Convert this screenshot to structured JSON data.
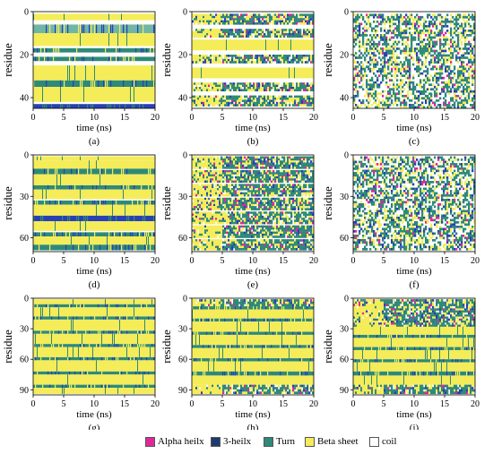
{
  "chart_data": [
    {
      "id": "a",
      "type": "heatmap",
      "tag": "(a)",
      "xlabel": "time (ns)",
      "ylabel": "residue",
      "xlim": [
        0,
        20
      ],
      "ylim": [
        0,
        45
      ],
      "xticks": [
        0,
        5,
        10,
        15,
        20
      ],
      "yticks": [
        0,
        20,
        40
      ],
      "bands": [
        [
          1,
          4,
          "beta"
        ],
        [
          6,
          10,
          "turn_light"
        ],
        [
          10,
          16,
          "beta"
        ],
        [
          17,
          19,
          "turn"
        ],
        [
          21,
          23,
          "turn"
        ],
        [
          25,
          32,
          "beta"
        ],
        [
          32,
          35,
          "turn"
        ],
        [
          35,
          42,
          "beta"
        ],
        [
          43,
          45,
          "helix3"
        ]
      ]
    },
    {
      "id": "b",
      "type": "heatmap",
      "tag": "(b)",
      "xlabel": "time (ns)",
      "ylabel": "residue",
      "xlim": [
        0,
        20
      ],
      "ylim": [
        0,
        45
      ],
      "xticks": [
        0,
        5,
        10,
        15,
        20
      ],
      "yticks": [
        0,
        20,
        40
      ],
      "bands": [
        [
          1,
          6,
          "mixed"
        ],
        [
          8,
          12,
          "mixed"
        ],
        [
          13,
          18,
          "beta"
        ],
        [
          20,
          24,
          "mixed"
        ],
        [
          26,
          31,
          "beta"
        ],
        [
          33,
          37,
          "mixed"
        ],
        [
          39,
          44,
          "mixed"
        ]
      ]
    },
    {
      "id": "c",
      "type": "heatmap",
      "tag": "(c)",
      "xlabel": "time (ns)",
      "ylabel": "residue",
      "xlim": [
        0,
        20
      ],
      "ylim": [
        0,
        45
      ],
      "xticks": [
        0,
        5,
        10,
        15,
        20
      ],
      "yticks": [
        0,
        20,
        40
      ],
      "bands": [
        [
          1,
          45,
          "disordered"
        ]
      ]
    },
    {
      "id": "d",
      "type": "heatmap",
      "tag": "(d)",
      "xlabel": "time (ns)",
      "ylabel": "residue",
      "xlim": [
        0,
        20
      ],
      "ylim": [
        0,
        70
      ],
      "xticks": [
        0,
        5,
        10,
        15,
        20
      ],
      "yticks": [
        0,
        30,
        60
      ],
      "bands": [
        [
          1,
          4,
          "beta"
        ],
        [
          4,
          10,
          "beta"
        ],
        [
          10,
          14,
          "turn"
        ],
        [
          14,
          22,
          "beta"
        ],
        [
          22,
          25,
          "turn"
        ],
        [
          25,
          32,
          "beta"
        ],
        [
          33,
          36,
          "turn"
        ],
        [
          36,
          44,
          "beta"
        ],
        [
          44,
          48,
          "helix3"
        ],
        [
          48,
          55,
          "beta"
        ],
        [
          56,
          59,
          "turn"
        ],
        [
          59,
          65,
          "beta"
        ],
        [
          65,
          69,
          "turn"
        ]
      ]
    },
    {
      "id": "e",
      "type": "heatmap",
      "tag": "(e)",
      "xlabel": "time (ns)",
      "ylabel": "residue",
      "xlim": [
        0,
        20
      ],
      "ylim": [
        0,
        70
      ],
      "xticks": [
        0,
        5,
        10,
        15,
        20
      ],
      "yticks": [
        0,
        30,
        60
      ],
      "bands": [
        [
          1,
          10,
          "mixed"
        ],
        [
          11,
          20,
          "mixed"
        ],
        [
          21,
          30,
          "mixed"
        ],
        [
          31,
          40,
          "mixed"
        ],
        [
          41,
          50,
          "mixed"
        ],
        [
          51,
          60,
          "mixed"
        ],
        [
          61,
          69,
          "mixed"
        ]
      ]
    },
    {
      "id": "f",
      "type": "heatmap",
      "tag": "(f)",
      "xlabel": "time (ns)",
      "ylabel": "residue",
      "xlim": [
        0,
        20
      ],
      "ylim": [
        0,
        70
      ],
      "xticks": [
        0,
        5,
        10,
        15,
        20
      ],
      "yticks": [
        0,
        30,
        60
      ],
      "bands": [
        [
          1,
          69,
          "disordered"
        ]
      ]
    },
    {
      "id": "g",
      "type": "heatmap",
      "tag": "(g)",
      "xlabel": "time (ns)",
      "ylabel": "residue",
      "xlim": [
        0,
        20
      ],
      "ylim": [
        0,
        95
      ],
      "xticks": [
        0,
        5,
        10,
        15,
        20
      ],
      "yticks": [
        0,
        30,
        60,
        90
      ],
      "bands": [
        [
          1,
          6,
          "beta"
        ],
        [
          6,
          9,
          "turn"
        ],
        [
          9,
          18,
          "beta"
        ],
        [
          18,
          21,
          "turn"
        ],
        [
          21,
          32,
          "beta"
        ],
        [
          32,
          35,
          "turn"
        ],
        [
          35,
          45,
          "beta"
        ],
        [
          45,
          48,
          "turn"
        ],
        [
          48,
          58,
          "beta"
        ],
        [
          58,
          61,
          "turn"
        ],
        [
          61,
          72,
          "beta"
        ],
        [
          72,
          75,
          "turn"
        ],
        [
          75,
          85,
          "beta"
        ],
        [
          85,
          88,
          "turn"
        ],
        [
          88,
          94,
          "beta"
        ]
      ]
    },
    {
      "id": "h",
      "type": "heatmap",
      "tag": "(h)",
      "xlabel": "time (ns)",
      "ylabel": "residue",
      "xlim": [
        0,
        20
      ],
      "ylim": [
        0,
        95
      ],
      "xticks": [
        0,
        5,
        10,
        15,
        20
      ],
      "yticks": [
        0,
        30,
        60,
        90
      ],
      "bands": [
        [
          1,
          8,
          "mixed"
        ],
        [
          8,
          11,
          "turn"
        ],
        [
          11,
          20,
          "beta"
        ],
        [
          20,
          23,
          "turn"
        ],
        [
          23,
          33,
          "beta"
        ],
        [
          33,
          36,
          "turn"
        ],
        [
          36,
          46,
          "beta"
        ],
        [
          46,
          49,
          "turn"
        ],
        [
          49,
          59,
          "beta"
        ],
        [
          59,
          62,
          "turn"
        ],
        [
          62,
          72,
          "beta"
        ],
        [
          72,
          76,
          "turn"
        ],
        [
          76,
          85,
          "beta"
        ],
        [
          85,
          94,
          "mixed"
        ]
      ]
    },
    {
      "id": "i",
      "type": "heatmap",
      "tag": "(i)",
      "xlabel": "time (ns)",
      "ylabel": "residue",
      "xlim": [
        0,
        20
      ],
      "ylim": [
        0,
        95
      ],
      "xticks": [
        0,
        5,
        10,
        15,
        20
      ],
      "yticks": [
        0,
        30,
        60,
        90
      ],
      "bands": [
        [
          1,
          10,
          "mixed"
        ],
        [
          10,
          20,
          "mixed"
        ],
        [
          20,
          28,
          "mixed"
        ],
        [
          28,
          36,
          "beta"
        ],
        [
          36,
          39,
          "turn"
        ],
        [
          39,
          48,
          "beta"
        ],
        [
          48,
          51,
          "turn"
        ],
        [
          51,
          60,
          "beta"
        ],
        [
          60,
          63,
          "turn"
        ],
        [
          63,
          72,
          "beta"
        ],
        [
          72,
          76,
          "turn"
        ],
        [
          76,
          85,
          "beta"
        ],
        [
          85,
          94,
          "mixed"
        ]
      ]
    }
  ],
  "legend": [
    {
      "label": "Alpha heilx",
      "color": "#e0279a"
    },
    {
      "label": "3-heilx",
      "color": "#1f3b6e"
    },
    {
      "label": "Turn",
      "color": "#2e8a78"
    },
    {
      "label": "Beta sheet",
      "color": "#f5ec5a"
    },
    {
      "label": "coil",
      "color": "#ffffff"
    }
  ],
  "colors": {
    "beta": "#f5ec5a",
    "turn": "#2e8a78",
    "helix3": "#2a3fb5",
    "alpha": "#e0279a",
    "coil": "#ffffff",
    "turn_light": "#6fb6a5"
  }
}
